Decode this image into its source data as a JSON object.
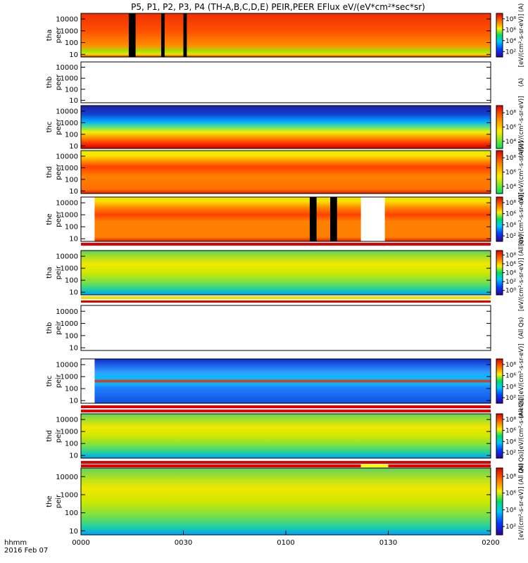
{
  "chart_data": {
    "type": "heatmap",
    "title": "P5, P1, P2, P3, P4 (TH-A,B,C,D,E) PEIR,PEER EFlux eV/(eV*cm²*sec*sr)",
    "x_ticks": [
      "0000",
      "0030",
      "0100",
      "0130",
      "0200"
    ],
    "x_range_minutes": [
      0,
      120
    ],
    "y_scale": "log",
    "y_range": [
      6,
      30000
    ],
    "y_ticks": [
      "10",
      "100",
      "1000",
      "10000"
    ],
    "color_scale": "log",
    "colorbar_ticks": [
      "10²",
      "10⁴",
      "10⁶",
      "10⁸"
    ],
    "colorbar_ticks_partial": [
      "10⁴",
      "10⁶",
      "10⁸"
    ],
    "colorbar_ticks_low": [
      "10⁰",
      "10²",
      "10⁴",
      "10⁶",
      "10⁸"
    ],
    "panels": [
      {
        "label_top": "tha",
        "label_bottom": "peer",
        "species": "electrons",
        "data": true,
        "gaps_minutes": [
          [
            14,
            16
          ],
          [
            23.5,
            24.5
          ],
          [
            30,
            31
          ]
        ],
        "colorbar_label": "[eV/(cm²-s-sr-eV)] (A)"
      },
      {
        "label_top": "thb",
        "label_bottom": "peer",
        "species": "electrons",
        "data": false,
        "colorbar_label": "(A)"
      },
      {
        "label_top": "thc",
        "label_bottom": "peer",
        "species": "electrons",
        "data": true,
        "colorbar_label": "(A)[eV/(cm²-s-sr-eV)]"
      },
      {
        "label_top": "thd",
        "label_bottom": "peer",
        "species": "electrons",
        "data": true,
        "colorbar_label": "(A)[eV/(cm²-s-sr-eV)]"
      },
      {
        "label_top": "the",
        "label_bottom": "peer",
        "species": "electrons",
        "data": true,
        "gaps_minutes": [
          [
            67,
            69
          ],
          [
            73,
            75
          ]
        ],
        "no_data_minutes": [
          [
            0,
            4
          ],
          [
            82,
            89
          ]
        ],
        "colorbar_label": "[eV/(cm²-s-sr-eV)]"
      },
      {
        "label_top": "tha",
        "label_bottom": "peir",
        "species": "ions",
        "data": true,
        "colorbar_label": "[eV/(cm²-s-sr-eV)] (All Qs)"
      },
      {
        "label_top": "thb",
        "label_bottom": "peir",
        "species": "ions",
        "data": false,
        "colorbar_label": "(All Qs)"
      },
      {
        "label_top": "thc",
        "label_bottom": "peir",
        "species": "ions",
        "data": true,
        "no_data_minutes": [
          [
            0,
            4
          ]
        ],
        "colorbar_label": "(All Qs)[eV/(cm²-s-sr-eV)]"
      },
      {
        "label_top": "thd",
        "label_bottom": "peir",
        "species": "ions",
        "data": true,
        "colorbar_label": "(All Qs)[eV/(cm²-s-sr-eV)]"
      },
      {
        "label_top": "the",
        "label_bottom": "peir",
        "species": "ions",
        "data": true,
        "colorbar_label": "[eV/(cm²-s-sr-eV)] (All Qs)"
      }
    ],
    "footer_left_top": "hhmm",
    "footer_left_bottom": "2016 Feb 07"
  }
}
